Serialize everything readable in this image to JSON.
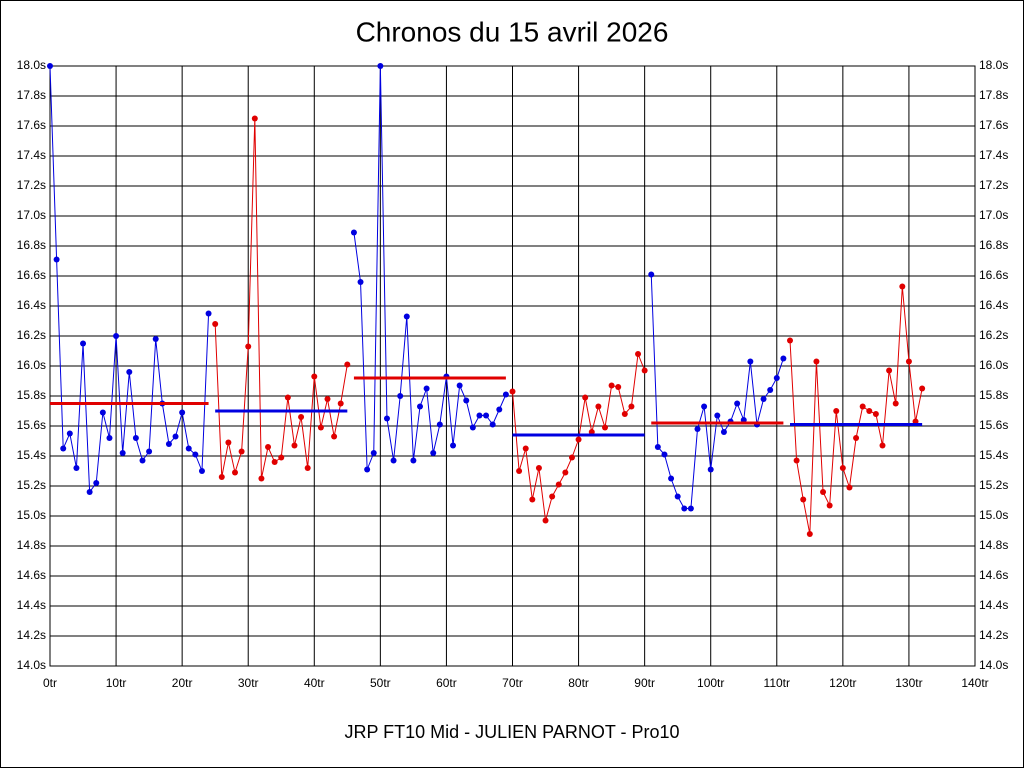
{
  "chart_data": {
    "type": "line",
    "title": "Chronos du 15 avril 2026",
    "footer": "JRP FT10 Mid - JULIEN PARNOT - Pro10",
    "xlim": [
      0,
      140
    ],
    "ylim": [
      14,
      18
    ],
    "grid": true,
    "xticks": [
      {
        "value": 0,
        "label": "0tr"
      },
      {
        "value": 10,
        "label": "10tr"
      },
      {
        "value": 20,
        "label": "20tr"
      },
      {
        "value": 30,
        "label": "30tr"
      },
      {
        "value": 40,
        "label": "40tr"
      },
      {
        "value": 50,
        "label": "50tr"
      },
      {
        "value": 60,
        "label": "60tr"
      },
      {
        "value": 70,
        "label": "70tr"
      },
      {
        "value": 80,
        "label": "80tr"
      },
      {
        "value": 90,
        "label": "90tr"
      },
      {
        "value": 100,
        "label": "100tr"
      },
      {
        "value": 110,
        "label": "110tr"
      },
      {
        "value": 120,
        "label": "120tr"
      },
      {
        "value": 130,
        "label": "130tr"
      },
      {
        "value": 140,
        "label": "140tr"
      }
    ],
    "yticks": [
      {
        "value": 14.0,
        "label": "14.0s"
      },
      {
        "value": 14.2,
        "label": "14.2s"
      },
      {
        "value": 14.4,
        "label": "14.4s"
      },
      {
        "value": 14.6,
        "label": "14.6s"
      },
      {
        "value": 14.8,
        "label": "14.8s"
      },
      {
        "value": 15.0,
        "label": "15.0s"
      },
      {
        "value": 15.2,
        "label": "15.2s"
      },
      {
        "value": 15.4,
        "label": "15.4s"
      },
      {
        "value": 15.6,
        "label": "15.6s"
      },
      {
        "value": 15.8,
        "label": "15.8s"
      },
      {
        "value": 16.0,
        "label": "16.0s"
      },
      {
        "value": 16.2,
        "label": "16.2s"
      },
      {
        "value": 16.4,
        "label": "16.4s"
      },
      {
        "value": 16.6,
        "label": "16.6s"
      },
      {
        "value": 16.8,
        "label": "16.8s"
      },
      {
        "value": 17.0,
        "label": "17.0s"
      },
      {
        "value": 17.2,
        "label": "17.2s"
      },
      {
        "value": 17.4,
        "label": "17.4s"
      },
      {
        "value": 17.6,
        "label": "17.6s"
      },
      {
        "value": 17.8,
        "label": "17.8s"
      },
      {
        "value": 18.0,
        "label": "18.0s"
      }
    ],
    "series": [
      {
        "color": "#0000e0",
        "mean": 15.75,
        "mean_color": "#e00000",
        "x": [
          0,
          1,
          2,
          3,
          4,
          5,
          6,
          7,
          8,
          9,
          10,
          11,
          12,
          13,
          14,
          15,
          16,
          17,
          18,
          19,
          20,
          21,
          22,
          23,
          24
        ],
        "values": [
          18.0,
          16.71,
          15.45,
          15.55,
          15.32,
          16.15,
          15.16,
          15.22,
          15.69,
          15.52,
          16.2,
          15.42,
          15.96,
          15.52,
          15.37,
          15.43,
          16.18,
          15.75,
          15.48,
          15.53,
          15.69,
          15.45,
          15.41,
          15.3,
          16.35
        ]
      },
      {
        "color": "#e00000",
        "mean": 15.7,
        "mean_color": "#0000e0",
        "x": [
          25,
          26,
          27,
          28,
          29,
          30,
          31,
          32,
          33,
          34,
          35,
          36,
          37,
          38,
          39,
          40,
          41,
          42,
          43,
          44,
          45
        ],
        "values": [
          16.28,
          15.26,
          15.49,
          15.29,
          15.43,
          16.13,
          17.65,
          15.25,
          15.46,
          15.36,
          15.39,
          15.79,
          15.47,
          15.66,
          15.32,
          15.93,
          15.59,
          15.78,
          15.53,
          15.75,
          16.01
        ]
      },
      {
        "color": "#0000e0",
        "mean": 15.92,
        "mean_color": "#e00000",
        "x": [
          46,
          47,
          48,
          49,
          50,
          51,
          52,
          53,
          54,
          55,
          56,
          57,
          58,
          59,
          60,
          61,
          62,
          63,
          64,
          65,
          66,
          67,
          68,
          69
        ],
        "values": [
          16.89,
          16.56,
          15.31,
          15.42,
          18.0,
          15.65,
          15.37,
          15.8,
          16.33,
          15.37,
          15.73,
          15.85,
          15.42,
          15.61,
          15.93,
          15.47,
          15.87,
          15.77,
          15.59,
          15.67,
          15.67,
          15.61,
          15.71,
          15.81
        ]
      },
      {
        "color": "#e00000",
        "mean": 15.54,
        "mean_color": "#0000e0",
        "x": [
          70,
          71,
          72,
          73,
          74,
          75,
          76,
          77,
          78,
          79,
          80,
          81,
          82,
          83,
          84,
          85,
          86,
          87,
          88,
          89,
          90
        ],
        "values": [
          15.83,
          15.3,
          15.45,
          15.11,
          15.32,
          14.97,
          15.13,
          15.21,
          15.29,
          15.39,
          15.51,
          15.79,
          15.56,
          15.73,
          15.59,
          15.87,
          15.86,
          15.68,
          15.73,
          16.08,
          15.97
        ]
      },
      {
        "color": "#0000e0",
        "mean": 15.62,
        "mean_color": "#e00000",
        "x": [
          91,
          92,
          93,
          94,
          95,
          96,
          97,
          98,
          99,
          100,
          101,
          102,
          103,
          104,
          105,
          106,
          107,
          108,
          109,
          110,
          111
        ],
        "values": [
          16.61,
          15.46,
          15.41,
          15.25,
          15.13,
          15.05,
          15.05,
          15.58,
          15.73,
          15.31,
          15.67,
          15.56,
          15.63,
          15.75,
          15.64,
          16.03,
          15.61,
          15.78,
          15.84,
          15.92,
          16.05
        ]
      },
      {
        "color": "#e00000",
        "mean": 15.61,
        "mean_color": "#0000e0",
        "x": [
          112,
          113,
          114,
          115,
          116,
          117,
          118,
          119,
          120,
          121,
          122,
          123,
          124,
          125,
          126,
          127,
          128,
          129,
          130,
          131,
          132
        ],
        "values": [
          16.17,
          15.37,
          15.11,
          14.88,
          16.03,
          15.16,
          15.07,
          15.7,
          15.32,
          15.19,
          15.52,
          15.73,
          15.7,
          15.68,
          15.47,
          15.97,
          15.75,
          16.53,
          16.03,
          15.63,
          15.85
        ]
      }
    ]
  }
}
